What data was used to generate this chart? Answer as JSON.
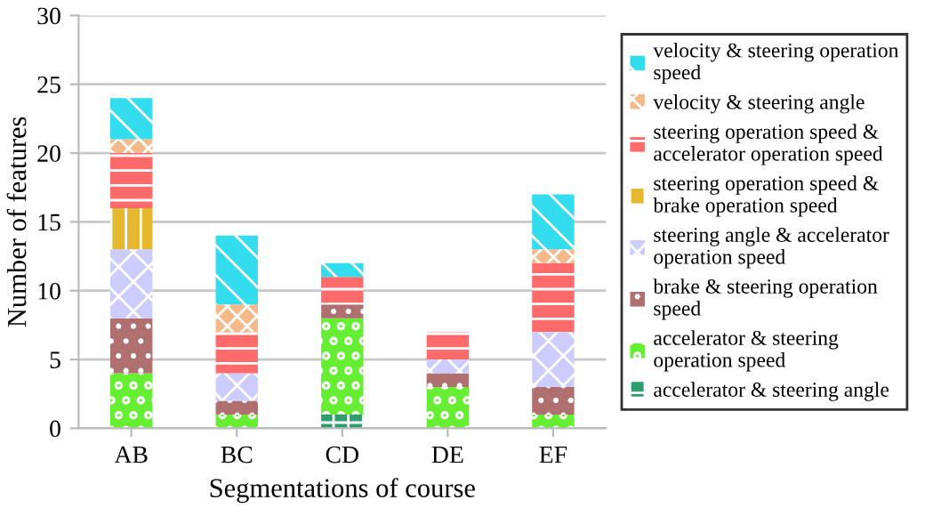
{
  "chart_data": {
    "type": "bar",
    "stacked": true,
    "xlabel": "Segmentations of course",
    "ylabel": "Number of features",
    "categories": [
      "AB",
      "BC",
      "CD",
      "DE",
      "EF"
    ],
    "series": [
      {
        "name": "accelerator & steering angle",
        "color": "#2e9e6e",
        "values": [
          0,
          0,
          1,
          0,
          0
        ]
      },
      {
        "name": "accelerator & steering\noperation speed",
        "color": "#66ee33",
        "values": [
          4,
          1,
          7,
          3,
          1
        ]
      },
      {
        "name": "brake & steering operation\nspeed",
        "color": "#b07070",
        "values": [
          4,
          1,
          1,
          1,
          2
        ]
      },
      {
        "name": "steering angle & accelerator\noperation speed",
        "color": "#ccccff",
        "values": [
          5,
          2,
          0,
          1,
          4
        ]
      },
      {
        "name": "steering operation speed &\nbrake operation speed",
        "color": "#e6b830",
        "values": [
          3,
          0,
          0,
          0,
          0
        ]
      },
      {
        "name": "steering operation speed &\naccelerator operation speed",
        "color": "#ff6a6a",
        "values": [
          4,
          3,
          2,
          2,
          5
        ]
      },
      {
        "name": "velocity & steering angle",
        "color": "#f5b98a",
        "values": [
          1,
          2,
          0,
          0,
          1
        ]
      },
      {
        "name": "velocity & steering operation\nspeed",
        "color": "#33ddee",
        "values": [
          3,
          5,
          1,
          0,
          4
        ]
      }
    ],
    "ylim": [
      0,
      30
    ],
    "yticks": [
      0,
      5,
      10,
      15,
      20,
      25,
      30
    ],
    "grid": "y",
    "legend": "right"
  }
}
